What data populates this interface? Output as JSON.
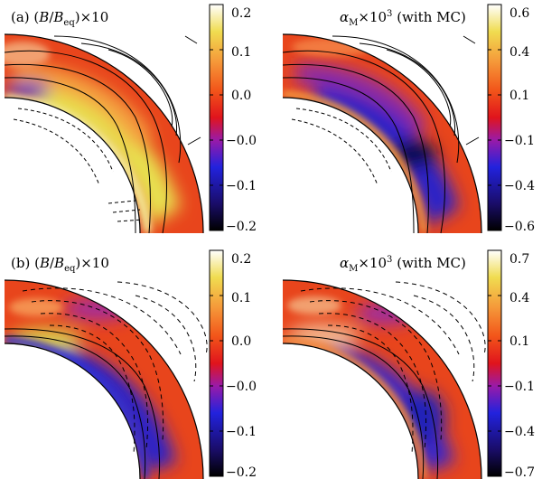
{
  "chart_data": [
    {
      "type": "heatmap",
      "panel_label": "(a)",
      "title": "(B/B_eq)×10",
      "title_parts": {
        "pre": "(a) (",
        "var": "B",
        "slash": "/",
        "var2": "B",
        "sub": "eq",
        "post": ")×10"
      },
      "colorbar": {
        "ticks": [
          "0.2",
          "0.1",
          "0.0",
          "−0.0",
          "−0.1",
          "−0.2"
        ],
        "range": [
          -0.2,
          0.2
        ]
      },
      "contours": "solid",
      "dominant": "positive"
    },
    {
      "type": "heatmap",
      "title": "α_M×10^3 (with MC)",
      "title_parts": {
        "var": "α",
        "sub": "M",
        "mid": "×10",
        "sup": "3",
        "post": " (with MC)"
      },
      "colorbar": {
        "ticks": [
          "0.6",
          "0.4",
          "0.1",
          "−0.1",
          "−0.4",
          "−0.6"
        ],
        "range": [
          -0.6,
          0.6
        ]
      },
      "contours": "solid",
      "dominant": "negative"
    },
    {
      "type": "heatmap",
      "panel_label": "(b)",
      "title": "(B/B_eq)×10",
      "title_parts": {
        "pre": "(b) (",
        "var": "B",
        "slash": "/",
        "var2": "B",
        "sub": "eq",
        "post": ")×10"
      },
      "colorbar": {
        "ticks": [
          "0.2",
          "0.1",
          "0.0",
          "−0.0",
          "−0.1",
          "−0.2"
        ],
        "range": [
          -0.2,
          0.2
        ]
      },
      "contours": "dashed",
      "dominant": "negative"
    },
    {
      "type": "heatmap",
      "title": "α_M×10^3 (with MC)",
      "title_parts": {
        "var": "α",
        "sub": "M",
        "mid": "×10",
        "sup": "3",
        "post": " (with MC)"
      },
      "colorbar": {
        "ticks": [
          "0.7",
          "0.4",
          "0.1",
          "−0.1",
          "−0.4",
          "−0.7"
        ],
        "range": [
          -0.7,
          0.7
        ]
      },
      "contours": "dashed",
      "dominant": "negative"
    }
  ]
}
